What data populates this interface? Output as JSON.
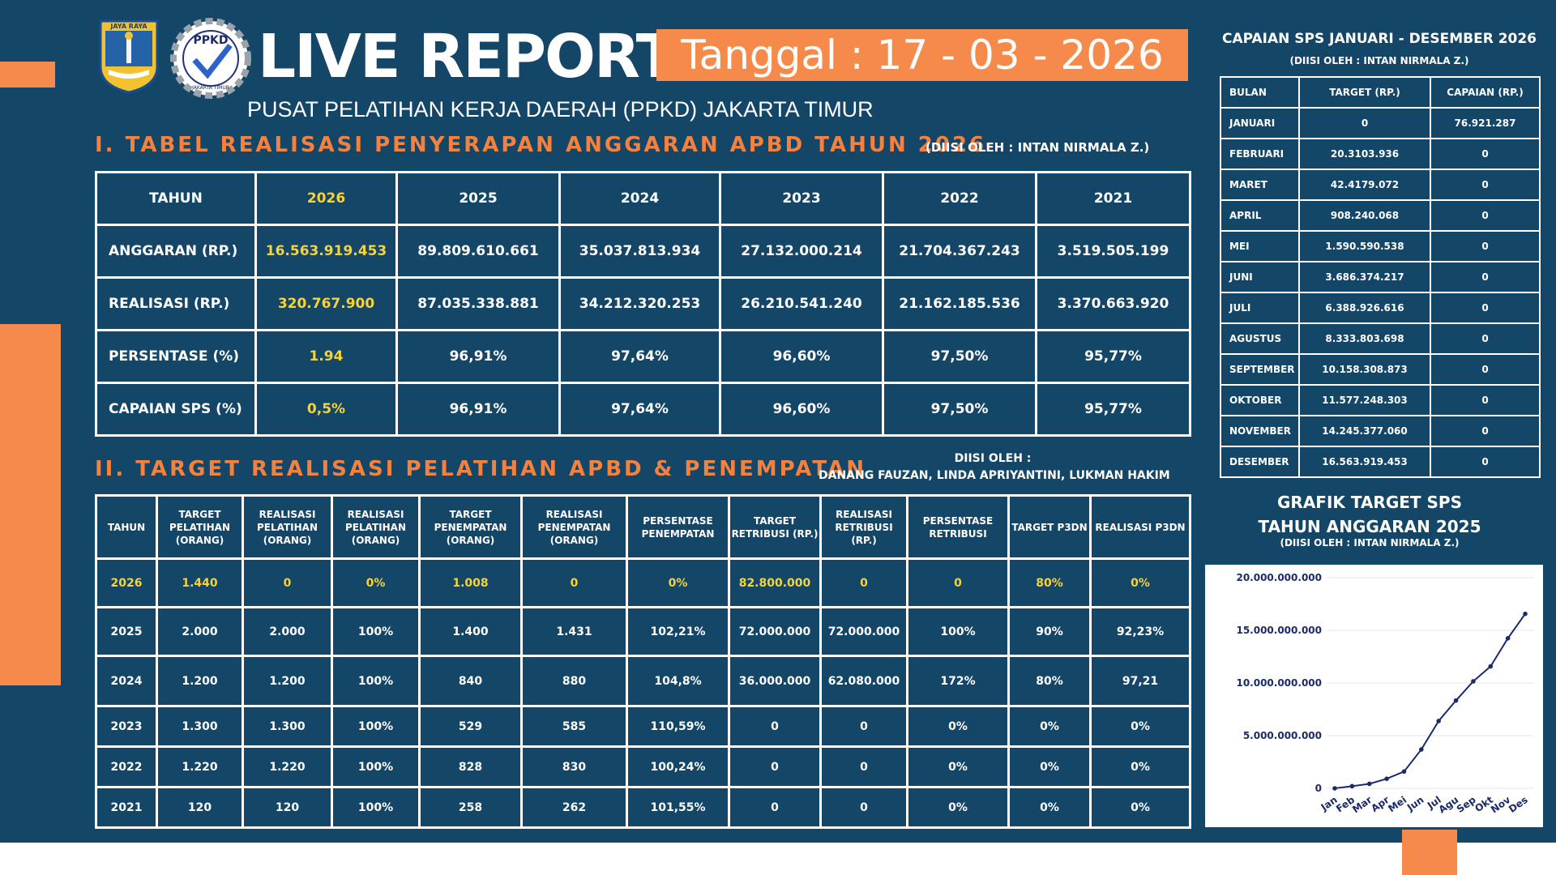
{
  "header": {
    "title": "LIVE REPORT",
    "date": "Tanggal : 17 - 03 - 2026",
    "subtitle": "PUSAT PELATIHAN KERJA DAERAH (PPKD) JAKARTA TIMUR",
    "logo1_text": "JAYA RAYA",
    "logo2_text": "PPKD",
    "logo2_sub": "JAKARTA TIMUR"
  },
  "colors": {
    "background": "#144668",
    "accent": "#f58a4b",
    "highlight": "#f5d33a",
    "line": "#1b2a6b"
  },
  "section1": {
    "title": "I. TABEL REALISASI PENYERAPAN ANGGARAN APBD TAHUN 2026",
    "note": "(DIISI OLEH : INTAN NIRMALA Z.)",
    "headers": [
      "TAHUN",
      "2026",
      "2025",
      "2024",
      "2023",
      "2022",
      "2021"
    ],
    "rows": [
      [
        "ANGGARAN (RP.)",
        "16.563.919.453",
        "89.809.610.661",
        "35.037.813.934",
        "27.132.000.214",
        "21.704.367.243",
        "3.519.505.199"
      ],
      [
        "REALISASI (RP.)",
        "320.767.900",
        "87.035.338.881",
        "34.212.320.253",
        "26.210.541.240",
        "21.162.185.536",
        "3.370.663.920"
      ],
      [
        "PERSENTASE (%)",
        "1.94",
        "96,91%",
        "97,64%",
        "96,60%",
        "97,50%",
        "95,77%"
      ],
      [
        "CAPAIAN SPS (%)",
        "0,5%",
        "96,91%",
        "97,64%",
        "96,60%",
        "97,50%",
        "95,77%"
      ]
    ]
  },
  "section2": {
    "title": "II. TARGET REALISASI PELATIHAN APBD & PENEMPATAN",
    "note_line1": "DIISI OLEH :",
    "note_line2": "DANANG FAUZAN, LINDA APRIYANTINI, LUKMAN HAKIM",
    "headers": [
      "TAHUN",
      "TARGET PELATIHAN (ORANG)",
      "REALISASI PELATIHAN (ORANG)",
      "REALISASI PELATIHAN (ORANG)",
      "TARGET PENEMPATAN (ORANG)",
      "REALISASI PENEMPATAN (ORANG)",
      "PERSENTASE PENEMPATAN",
      "TARGET RETRIBUSI (RP.)",
      "REALISASI RETRIBUSI (RP.)",
      "PERSENTASE RETRIBUSI",
      "TARGET P3DN",
      "REALISASI P3DN"
    ],
    "rows": [
      [
        "2026",
        "1.440",
        "0",
        "0%",
        "1.008",
        "0",
        "0%",
        "82.800.000",
        "0",
        "0",
        "80%",
        "0%"
      ],
      [
        "2025",
        "2.000",
        "2.000",
        "100%",
        "1.400",
        "1.431",
        "102,21%",
        "72.000.000",
        "72.000.000",
        "100%",
        "90%",
        "92,23%"
      ],
      [
        "2024",
        "1.200",
        "1.200",
        "100%",
        "840",
        "880",
        "104,8%",
        "36.000.000",
        "62.080.000",
        "172%",
        "80%",
        "97,21"
      ],
      [
        "2023",
        "1.300",
        "1.300",
        "100%",
        "529",
        "585",
        "110,59%",
        "0",
        "0",
        "0%",
        "0%",
        "0%"
      ],
      [
        "2022",
        "1.220",
        "1.220",
        "100%",
        "828",
        "830",
        "100,24%",
        "0",
        "0",
        "0%",
        "0%",
        "0%"
      ],
      [
        "2021",
        "120",
        "120",
        "100%",
        "258",
        "262",
        "101,55%",
        "0",
        "0",
        "0%",
        "0%",
        "0%"
      ]
    ]
  },
  "capaian": {
    "title": "CAPAIAN SPS  JANUARI - DESEMBER 2026",
    "note": "(DIISI OLEH : INTAN NIRMALA Z.)",
    "headers": [
      "BULAN",
      "TARGET (RP.)",
      "CAPAIAN (RP.)"
    ],
    "rows": [
      [
        "JANUARI",
        "0",
        "76.921.287"
      ],
      [
        "FEBRUARI",
        "20.3103.936",
        "0"
      ],
      [
        "MARET",
        "42.4179.072",
        "0"
      ],
      [
        "APRIL",
        "908.240.068",
        "0"
      ],
      [
        "MEI",
        "1.590.590.538",
        "0"
      ],
      [
        "JUNI",
        "3.686.374.217",
        "0"
      ],
      [
        "JULI",
        "6.388.926.616",
        "0"
      ],
      [
        "AGUSTUS",
        "8.333.803.698",
        "0"
      ],
      [
        "SEPTEMBER",
        "10.158.308.873",
        "0"
      ],
      [
        "OKTOBER",
        "11.577.248.303",
        "0"
      ],
      [
        "NOVEMBER",
        "14.245.377.060",
        "0"
      ],
      [
        "DESEMBER",
        "16.563.919.453",
        "0"
      ]
    ]
  },
  "graph": {
    "title_line1": "GRAFIK TARGET  SPS",
    "title_line2": "TAHUN ANGGARAN 2025",
    "note": "(DIISI OLEH : INTAN NIRMALA Z.)"
  },
  "chart_data": {
    "type": "line",
    "categories": [
      "Jan",
      "Feb",
      "Mar",
      "Apr",
      "Mei",
      "Jun",
      "Jul",
      "Agu",
      "Sep",
      "Okt",
      "Nov",
      "Des"
    ],
    "values": [
      0,
      203103936,
      424179072,
      908240068,
      1590590538,
      3686374217,
      6388926616,
      8333803698,
      10158308873,
      11577248303,
      14245377060,
      16563919453
    ],
    "ylim": [
      0,
      20000000000
    ],
    "yticks": [
      0,
      5000000000,
      10000000000,
      15000000000,
      20000000000
    ],
    "yticklabels": [
      "0",
      "5.000.000.000",
      "10.000.000.000",
      "15.000.000.000",
      "20.000.000.000"
    ],
    "grid": true
  }
}
